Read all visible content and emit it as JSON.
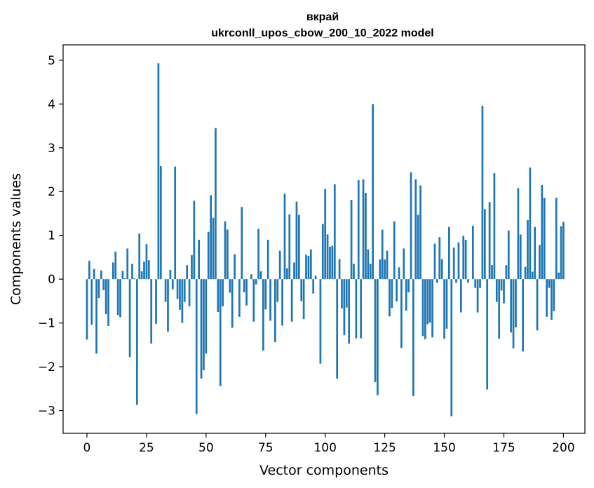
{
  "chart_data": {
    "type": "bar",
    "title_line1": "вкрай",
    "title_line2": "ukrconll_upos_cbow_200_10_2022 model",
    "xlabel": "Vector components",
    "ylabel": "Components values",
    "xlim": [
      -10,
      209
    ],
    "ylim": [
      -3.52,
      5.35
    ],
    "xticks": [
      0,
      25,
      50,
      75,
      100,
      125,
      150,
      175,
      200
    ],
    "yticks": [
      -3,
      -2,
      -1,
      0,
      1,
      2,
      3,
      4,
      5
    ],
    "xtick_labels": [
      "0",
      "25",
      "50",
      "75",
      "100",
      "125",
      "150",
      "175",
      "200"
    ],
    "ytick_labels": [
      "−3",
      "−2",
      "−1",
      "0",
      "1",
      "2",
      "3",
      "4",
      "5"
    ],
    "bar_color": "#1f77b4",
    "grid": false,
    "values": [
      -1.38,
      0.42,
      -1.04,
      0.23,
      -1.7,
      -0.43,
      0.2,
      -0.25,
      -0.8,
      -1.07,
      0.0,
      0.38,
      0.63,
      -0.82,
      -0.87,
      0.19,
      0.02,
      0.7,
      -1.78,
      0.35,
      0.02,
      -2.87,
      1.04,
      0.18,
      0.4,
      0.8,
      0.43,
      -1.47,
      0.0,
      -1.02,
      4.93,
      2.58,
      0.0,
      -0.52,
      -1.2,
      0.21,
      -0.23,
      2.57,
      -0.45,
      -0.7,
      -1.0,
      -0.52,
      0.32,
      -0.62,
      0.55,
      1.79,
      -3.08,
      0.9,
      -2.27,
      -2.08,
      -1.7,
      1.08,
      1.92,
      1.4,
      3.45,
      -0.75,
      -2.44,
      -0.62,
      1.32,
      1.13,
      -0.31,
      -1.11,
      0.57,
      0.0,
      -0.86,
      1.65,
      -0.3,
      -0.6,
      0.0,
      0.11,
      -0.97,
      -0.12,
      1.15,
      0.18,
      -1.63,
      -0.69,
      0.9,
      -0.95,
      0.0,
      -1.44,
      -0.52,
      0.65,
      -1.06,
      1.95,
      0.25,
      1.48,
      -0.97,
      0.38,
      1.77,
      1.47,
      -0.5,
      -0.91,
      0.56,
      0.53,
      0.68,
      -0.33,
      0.08,
      0.0,
      -1.93,
      1.26,
      2.06,
      1.02,
      0.74,
      0.76,
      2.17,
      -2.27,
      0.46,
      -0.67,
      -1.28,
      -0.65,
      -1.47,
      1.81,
      0.35,
      -1.35,
      2.26,
      -1.35,
      2.28,
      1.97,
      0.68,
      0.35,
      4.0,
      -2.35,
      -2.65,
      0.45,
      1.13,
      0.45,
      0.65,
      -0.85,
      -0.66,
      1.32,
      -0.51,
      0.27,
      -1.57,
      0.7,
      -0.72,
      -0.3,
      2.44,
      -2.67,
      2.28,
      1.47,
      2.14,
      -1.3,
      -1.37,
      -1.03,
      -0.99,
      -1.33,
      0.81,
      -0.08,
      0.96,
      0.46,
      -1.36,
      -1.13,
      1.19,
      -3.13,
      0.72,
      -0.08,
      0.84,
      -0.76,
      0.99,
      0.9,
      -0.08,
      0.0,
      1.22,
      -0.2,
      -0.76,
      -0.2,
      3.96,
      1.6,
      -2.52,
      1.76,
      0.32,
      2.42,
      -0.52,
      -1.36,
      -0.26,
      -0.55,
      0.32,
      1.11,
      -1.22,
      -1.58,
      -1.1,
      2.08,
      1.02,
      -1.65,
      0.28,
      1.35,
      2.55,
      0.17,
      1.19,
      -1.17,
      0.78,
      2.15,
      1.86,
      -0.86,
      -0.2,
      -0.93,
      -0.73,
      1.86,
      0.15,
      1.21,
      1.31
    ]
  }
}
